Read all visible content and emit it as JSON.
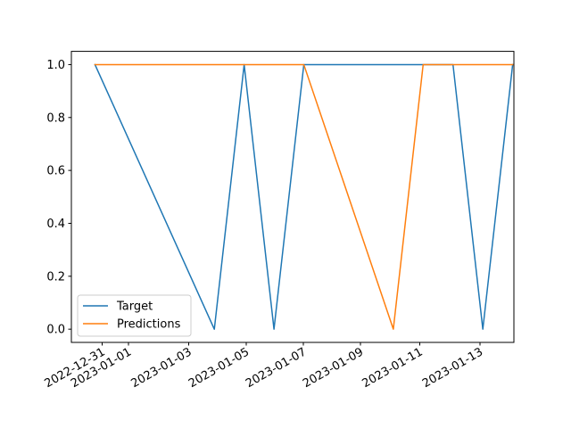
{
  "chart_data": {
    "type": "line",
    "title": "",
    "xlabel": "",
    "ylabel": "",
    "x_tick_labels": [
      "2022-12-31",
      "2023-01-01",
      "2023-01-03",
      "2023-01-05",
      "2023-01-07",
      "2023-01-09",
      "2023-01-11",
      "2023-01-13"
    ],
    "y_tick_labels": [
      "0.0",
      "0.2",
      "0.4",
      "0.6",
      "0.8",
      "1.0"
    ],
    "y_ticks": [
      0.0,
      0.2,
      0.4,
      0.6,
      0.8,
      1.0
    ],
    "xlim": [
      "2022-12-30T05:00",
      "2023-01-14T01:00"
    ],
    "ylim": [
      -0.05,
      1.05
    ],
    "grid": false,
    "legend_position": "lower-left",
    "series": [
      {
        "name": "Target",
        "color": "#1f77b4",
        "points": [
          {
            "x": "2022-12-31T00:00",
            "y": 1
          },
          {
            "x": "2023-01-04T00:00",
            "y": 0
          },
          {
            "x": "2023-01-05T00:00",
            "y": 1
          },
          {
            "x": "2023-01-06T00:00",
            "y": 0
          },
          {
            "x": "2023-01-07T00:00",
            "y": 1
          },
          {
            "x": "2023-01-11T00:00",
            "y": 1
          },
          {
            "x": "2023-01-12T00:00",
            "y": 1
          },
          {
            "x": "2023-01-13T00:00",
            "y": 0
          },
          {
            "x": "2023-01-14T00:00",
            "y": 1
          }
        ]
      },
      {
        "name": "Predictions",
        "color": "#ff7f0e",
        "points": [
          {
            "x": "2022-12-31T00:00",
            "y": 1
          },
          {
            "x": "2023-01-04T00:00",
            "y": 1
          },
          {
            "x": "2023-01-05T00:00",
            "y": 1
          },
          {
            "x": "2023-01-06T00:00",
            "y": 1
          },
          {
            "x": "2023-01-07T00:00",
            "y": 1
          },
          {
            "x": "2023-01-10T00:00",
            "y": 0
          },
          {
            "x": "2023-01-11T00:00",
            "y": 1
          },
          {
            "x": "2023-01-12T00:00",
            "y": 1
          },
          {
            "x": "2023-01-13T00:00",
            "y": 1
          },
          {
            "x": "2023-01-14T00:00",
            "y": 1
          }
        ]
      }
    ]
  }
}
